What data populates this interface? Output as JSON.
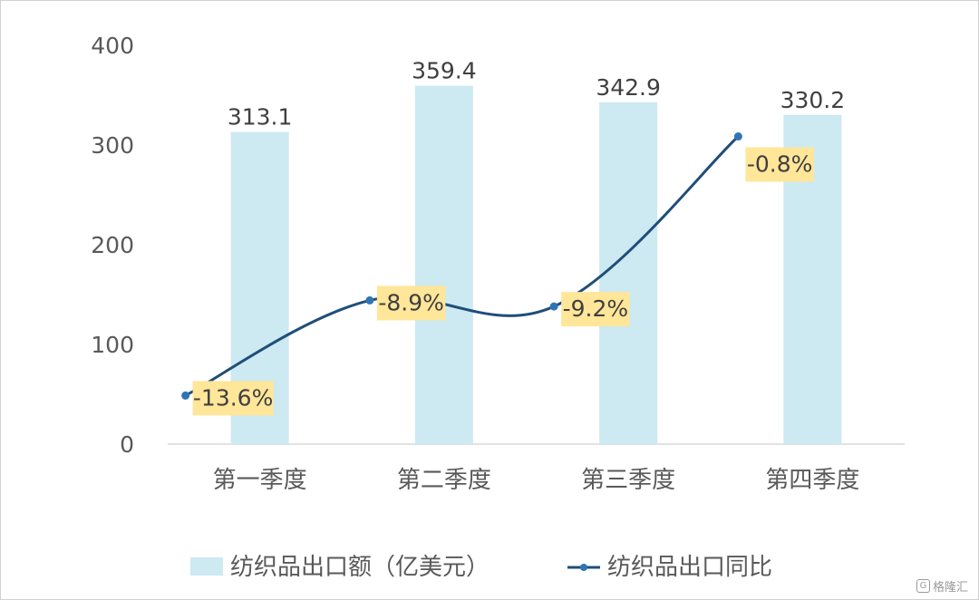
{
  "chart_data": {
    "type": "bar+line",
    "categories": [
      "第一季度",
      "第二季度",
      "第三季度",
      "第四季度"
    ],
    "y_ticks": [
      "0",
      "100",
      "200",
      "300",
      "400"
    ],
    "ylim": [
      0,
      400
    ],
    "grid": false,
    "legend_position": "bottom",
    "series": [
      {
        "name": "纺织品出口额（亿美元）",
        "type": "bar",
        "color": "#cde9f1",
        "values": [
          313.1,
          359.4,
          342.9,
          330.2
        ],
        "labels": [
          "313.1",
          "359.4",
          "342.9",
          "330.2"
        ]
      },
      {
        "name": "纺织品出口同比",
        "type": "line",
        "color": "#1f4e79",
        "marker_color": "#2e75b6",
        "values": [
          -13.6,
          -8.9,
          -9.2,
          -0.8
        ],
        "labels": [
          "-13.6%",
          "-8.9%",
          "-9.2%",
          "-0.8%"
        ],
        "label_bg": "#ffe699",
        "secondary_axis_range": [
          -16.0,
          3.7
        ]
      }
    ]
  },
  "watermark": {
    "logo_glyph": "G",
    "text": "格隆汇"
  }
}
